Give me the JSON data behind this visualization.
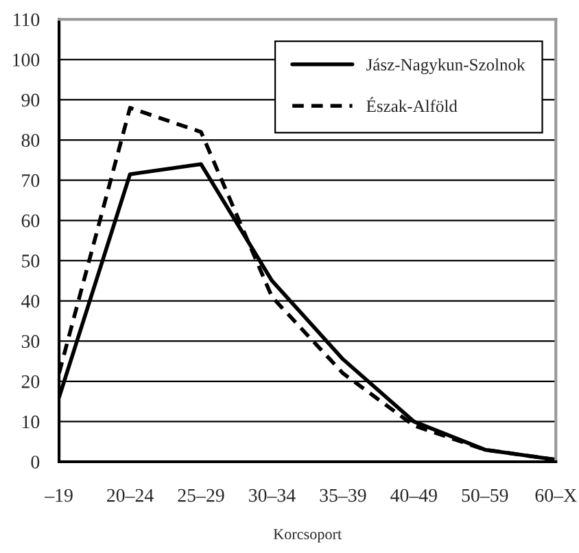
{
  "chart_data": {
    "type": "line",
    "xlabel": "Korcsoport",
    "categories": [
      "–19",
      "20–24",
      "25–29",
      "30–34",
      "35–39",
      "40–49",
      "50–59",
      "60–X"
    ],
    "ylim": [
      0,
      110
    ],
    "yticks": [
      0,
      10,
      20,
      30,
      40,
      50,
      60,
      70,
      80,
      90,
      100,
      110
    ],
    "grid": "y",
    "legend": "top right",
    "marker": "none",
    "series": [
      {
        "name": "Jász-Nagykun-Szolnok",
        "color": "#000000",
        "line_style": "solid",
        "values": [
          16,
          71.5,
          74,
          45,
          25.5,
          10,
          3,
          0.5
        ]
      },
      {
        "name": "Észak-Alföld",
        "color": "#000000",
        "line_style": "dashed",
        "values": [
          22,
          88,
          82,
          41,
          22,
          9,
          3,
          0.5
        ]
      }
    ]
  }
}
